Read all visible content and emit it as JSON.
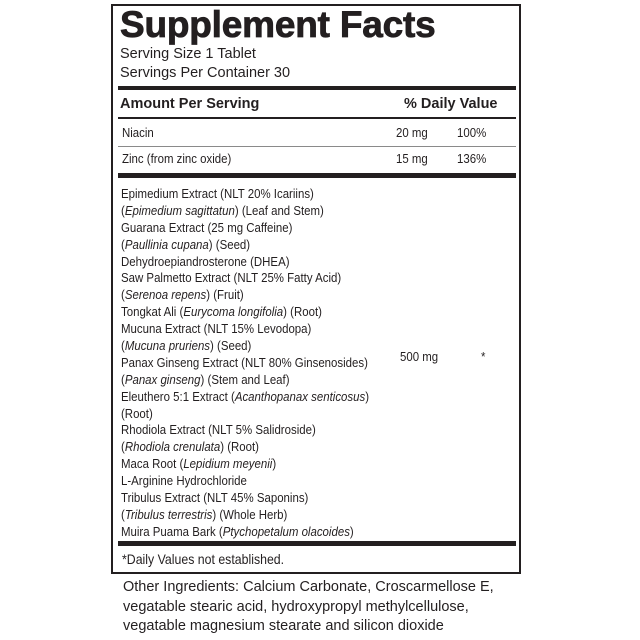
{
  "title": "Supplement Facts",
  "serving_size": "Serving Size 1 Tablet",
  "servings_per_container": "Servings Per Container 30",
  "header": {
    "amount": "Amount Per Serving",
    "daily_value": "% Daily Value"
  },
  "nutrients": [
    {
      "name": "Niacin",
      "amount": "20 mg",
      "dv": "100%"
    },
    {
      "name": "Zinc (from zinc oxide)",
      "amount": "15 mg",
      "dv": "136%"
    }
  ],
  "blend": {
    "amount": "500 mg",
    "dv": "*",
    "lines": [
      [
        {
          "t": "Epimedium Extract (NLT 20% Icariins)"
        }
      ],
      [
        {
          "t": "("
        },
        {
          "t": "Epimedium sagittatun",
          "i": true
        },
        {
          "t": ") (Leaf and Stem)"
        }
      ],
      [
        {
          "t": "Guarana Extract (25 mg Caffeine)"
        }
      ],
      [
        {
          "t": "("
        },
        {
          "t": "Paullinia cupana",
          "i": true
        },
        {
          "t": ")  (Seed)"
        }
      ],
      [
        {
          "t": "Dehydroepiandrosterone (DHEA)"
        }
      ],
      [
        {
          "t": "Saw Palmetto Extract (NLT 25% Fatty Acid)"
        }
      ],
      [
        {
          "t": "("
        },
        {
          "t": "Serenoa repens",
          "i": true
        },
        {
          "t": ") (Fruit)"
        }
      ],
      [
        {
          "t": "Tongkat Ali ("
        },
        {
          "t": "Eurycoma longifolia",
          "i": true
        },
        {
          "t": ") (Root)"
        }
      ],
      [
        {
          "t": "Mucuna Extract (NLT 15% Levodopa)"
        }
      ],
      [
        {
          "t": "("
        },
        {
          "t": "Mucuna pruriens",
          "i": true
        },
        {
          "t": ") (Seed)"
        }
      ],
      [
        {
          "t": "Panax Ginseng Extract (NLT 80% Ginsenosides)"
        }
      ],
      [
        {
          "t": "("
        },
        {
          "t": "Panax ginseng",
          "i": true
        },
        {
          "t": ") (Stem and Leaf)"
        }
      ],
      [
        {
          "t": "Eleuthero 5:1 Extract ("
        },
        {
          "t": "Acanthopanax senticosus",
          "i": true
        },
        {
          "t": ")"
        }
      ],
      [
        {
          "t": "(Root)"
        }
      ],
      [
        {
          "t": "Rhodiola Extract (NLT 5% Salidroside)"
        }
      ],
      [
        {
          "t": "("
        },
        {
          "t": "Rhodiola crenulata",
          "i": true
        },
        {
          "t": ") (Root)"
        }
      ],
      [
        {
          "t": "Maca Root ("
        },
        {
          "t": "Lepidium meyenii",
          "i": true
        },
        {
          "t": ")"
        }
      ],
      [
        {
          "t": "L-Arginine Hydrochloride"
        }
      ],
      [
        {
          "t": "Tribulus Extract (NLT 45% Saponins)"
        }
      ],
      [
        {
          "t": "("
        },
        {
          "t": "Tribulus terrestris",
          "i": true
        },
        {
          "t": ") (Whole Herb)"
        }
      ],
      [
        {
          "t": "Muira Puama Bark ("
        },
        {
          "t": "Ptychopetalum olacoides",
          "i": true
        },
        {
          "t": ")"
        }
      ]
    ]
  },
  "footnote": "*Daily Values not established.",
  "other_ingredients": [
    "Other Ingredients: Calcium Carbonate, Croscarmellose E,",
    "vegatable stearic acid, hydroxypropyl methylcellulose,",
    "vegatable magnesium stearate and silicon dioxide"
  ]
}
